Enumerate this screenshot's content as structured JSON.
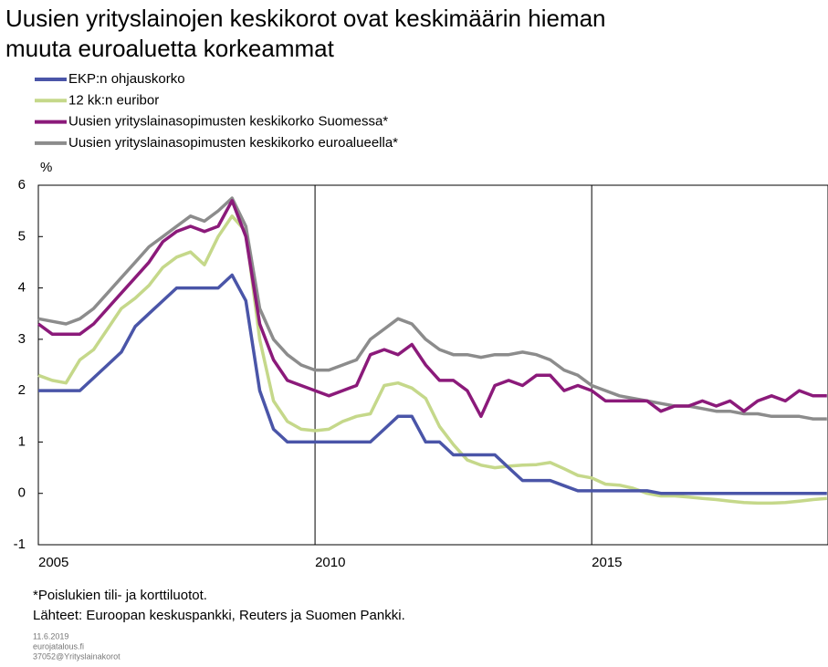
{
  "chart_data": {
    "type": "line",
    "title_lines": [
      "Uusien yrityslainojen keskikorot ovat keskimäärin hieman",
      "muuta euroaluetta korkeammat"
    ],
    "y_label": "%",
    "x": [
      2005,
      2005.25,
      2005.5,
      2005.75,
      2006,
      2006.25,
      2006.5,
      2006.75,
      2007,
      2007.25,
      2007.5,
      2007.75,
      2008,
      2008.25,
      2008.5,
      2008.75,
      2009,
      2009.25,
      2009.5,
      2009.75,
      2010,
      2010.25,
      2010.5,
      2010.75,
      2011,
      2011.25,
      2011.5,
      2011.75,
      2012,
      2012.25,
      2012.5,
      2012.75,
      2013,
      2013.25,
      2013.5,
      2013.75,
      2014,
      2014.25,
      2014.5,
      2014.75,
      2015,
      2015.25,
      2015.5,
      2015.75,
      2016,
      2016.25,
      2016.5,
      2016.75,
      2017,
      2017.25,
      2017.5,
      2017.75,
      2018,
      2018.25,
      2018.5,
      2018.75,
      2019,
      2019.25
    ],
    "series": [
      {
        "name": "EKP:n ohjauskorko",
        "color": "#4a55a8",
        "values": [
          2,
          2,
          2,
          2,
          2.25,
          2.5,
          2.75,
          3.25,
          3.5,
          3.75,
          4,
          4,
          4,
          4,
          4.25,
          3.75,
          2,
          1.25,
          1,
          1,
          1,
          1,
          1,
          1,
          1,
          1.25,
          1.5,
          1.5,
          1,
          1,
          0.75,
          0.75,
          0.75,
          0.75,
          0.5,
          0.25,
          0.25,
          0.25,
          0.15,
          0.05,
          0.05,
          0.05,
          0.05,
          0.05,
          0.05,
          0,
          0,
          0,
          0,
          0,
          0,
          0,
          0,
          0,
          0,
          0,
          0,
          0
        ]
      },
      {
        "name": "12 kk:n euribor",
        "color": "#c5d88a",
        "values": [
          2.3,
          2.2,
          2.15,
          2.6,
          2.8,
          3.2,
          3.6,
          3.8,
          4.05,
          4.4,
          4.6,
          4.7,
          4.45,
          5,
          5.4,
          5.1,
          3,
          1.8,
          1.4,
          1.25,
          1.22,
          1.25,
          1.4,
          1.5,
          1.55,
          2.1,
          2.15,
          2.05,
          1.85,
          1.3,
          0.95,
          0.65,
          0.55,
          0.5,
          0.53,
          0.55,
          0.56,
          0.6,
          0.48,
          0.35,
          0.3,
          0.18,
          0.16,
          0.1,
          0,
          -0.05,
          -0.05,
          -0.07,
          -0.1,
          -0.12,
          -0.15,
          -0.18,
          -0.19,
          -0.19,
          -0.18,
          -0.15,
          -0.12,
          -0.1
        ]
      },
      {
        "name": "Uusien yrityslainasopimusten keskikorko Suomessa*",
        "color": "#8b1a7a",
        "values": [
          3.3,
          3.1,
          3.1,
          3.1,
          3.3,
          3.6,
          3.9,
          4.2,
          4.5,
          4.9,
          5.1,
          5.2,
          5.1,
          5.2,
          5.7,
          5,
          3.3,
          2.6,
          2.2,
          2.1,
          2,
          1.9,
          2,
          2.1,
          2.7,
          2.8,
          2.7,
          2.9,
          2.5,
          2.2,
          2.2,
          2,
          1.5,
          2.1,
          2.2,
          2.1,
          2.3,
          2.3,
          2,
          2.1,
          2,
          1.8,
          1.8,
          1.8,
          1.8,
          1.6,
          1.7,
          1.7,
          1.8,
          1.7,
          1.8,
          1.6,
          1.8,
          1.9,
          1.8,
          2,
          1.9,
          1.9
        ]
      },
      {
        "name": "Uusien yrityslainasopimusten keskikorko euroalueella*",
        "color": "#8c8c8c",
        "values": [
          3.4,
          3.35,
          3.3,
          3.4,
          3.6,
          3.9,
          4.2,
          4.5,
          4.8,
          5,
          5.2,
          5.4,
          5.3,
          5.5,
          5.75,
          5.2,
          3.6,
          3,
          2.7,
          2.5,
          2.4,
          2.4,
          2.5,
          2.6,
          3,
          3.2,
          3.4,
          3.3,
          3,
          2.8,
          2.7,
          2.7,
          2.65,
          2.7,
          2.7,
          2.75,
          2.7,
          2.6,
          2.4,
          2.3,
          2.1,
          2,
          1.9,
          1.85,
          1.8,
          1.75,
          1.7,
          1.7,
          1.65,
          1.6,
          1.6,
          1.55,
          1.55,
          1.5,
          1.5,
          1.5,
          1.45,
          1.45
        ]
      }
    ],
    "xlim": [
      2005,
      2019.27
    ],
    "xticks": [
      2005,
      2010,
      2015
    ],
    "ylim": [
      -1,
      6
    ],
    "yticks": [
      -1,
      0,
      1,
      2,
      3,
      4,
      5,
      6
    ],
    "grid_x": true,
    "footnote": "*Poislukien tili- ja korttiluotot.",
    "source": "Lähteet: Euroopan keskuspankki,  Reuters ja Suomen Pankki.",
    "date": "11.6.2019",
    "site": "eurojatalous.fi",
    "code": "37052@Yrityslainakorot"
  }
}
